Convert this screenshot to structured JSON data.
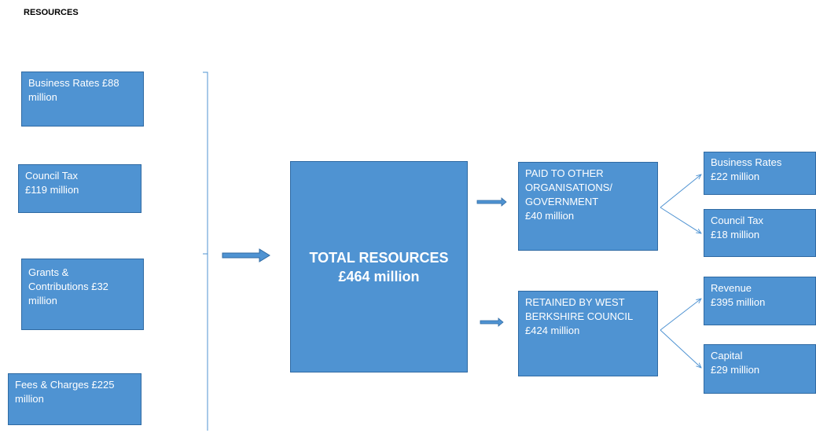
{
  "title": "RESOURCES",
  "sources": [
    {
      "label": "Business Rates £88\nmillion"
    },
    {
      "label": "Council Tax\n£119 million"
    },
    {
      "label": "Grants &\nContributions £32\nmillion"
    },
    {
      "label": "Fees & Charges £225\nmillion"
    }
  ],
  "total": {
    "label": "TOTAL RESOURCES\n£464 million"
  },
  "paid_out": {
    "label": "PAID TO OTHER\nORGANISATIONS/\nGOVERNMENT\n£40 million",
    "items": [
      {
        "label": "Business Rates\n£22 million"
      },
      {
        "label": "Council Tax\n£18 million"
      }
    ]
  },
  "retained": {
    "label": "RETAINED BY WEST\nBERKSHIRE COUNCIL\n£424 million",
    "items": [
      {
        "label": "Revenue\n£395 million"
      },
      {
        "label": "Capital\n£29 million"
      }
    ]
  },
  "colors": {
    "box_fill": "#4f93d2",
    "box_border": "#2f6aa3",
    "connector": "#4f93d2"
  }
}
